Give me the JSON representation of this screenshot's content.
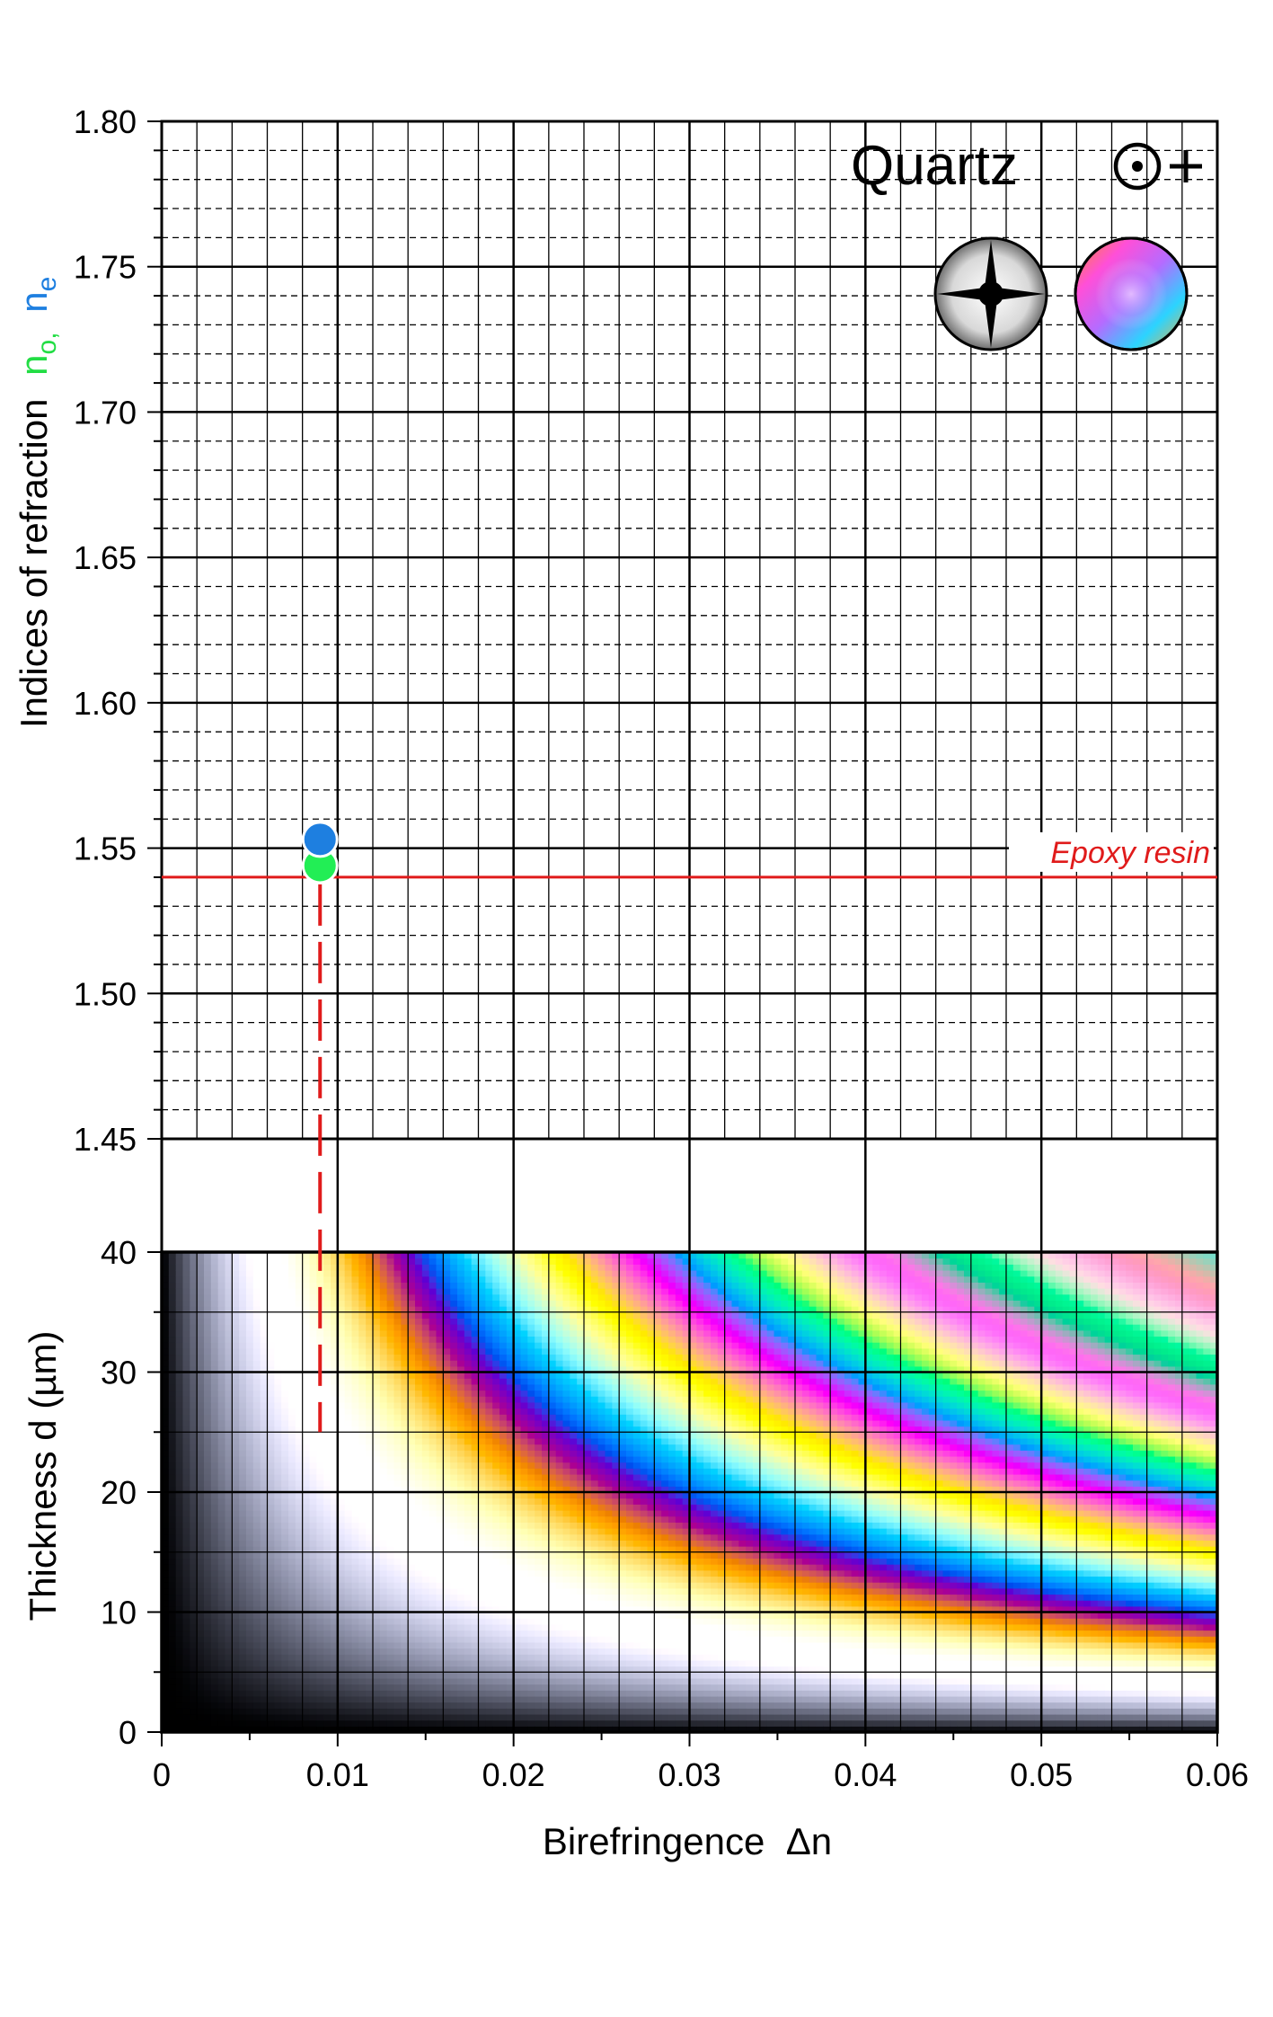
{
  "chart_data": [
    {
      "type": "scatter",
      "panel": "refractive-indices",
      "ylabel_prefix": "Indices of refraction",
      "ylabel_no": "n",
      "ylabel_no_sub": "o,",
      "ylabel_ne": "n",
      "ylabel_ne_sub": "e",
      "ylim": [
        1.45,
        1.8
      ],
      "y_ticks": [
        "1.45",
        "1.50",
        "1.55",
        "1.60",
        "1.65",
        "1.70",
        "1.75",
        "1.80"
      ],
      "grid": true,
      "mineral": "Quartz",
      "optic_sign": "⊙+",
      "points": [
        {
          "label": "no",
          "delta_n": 0.009,
          "index": 1.544,
          "color": "#22ee55"
        },
        {
          "label": "ne",
          "delta_n": 0.009,
          "index": 1.553,
          "color": "#1e7fe0"
        }
      ],
      "reference_line": {
        "label": "Epoxy resin",
        "index": 1.54,
        "color": "#e01b1b"
      }
    },
    {
      "type": "heatmap",
      "panel": "interference-colors",
      "xlabel": "Birefringence  Δn",
      "ylabel": "Thickness  d  (µm)",
      "xlim": [
        0,
        0.06
      ],
      "ylim": [
        0,
        40
      ],
      "x_ticks": [
        "0",
        "0.01",
        "0.02",
        "0.03",
        "0.04",
        "0.05",
        "0.06"
      ],
      "y_ticks": [
        "0",
        "10",
        "20",
        "30",
        "40"
      ],
      "grid": true,
      "mineral_birefringence": 0.009,
      "dashed_line": {
        "delta_n": 0.009,
        "from_index": 1.54,
        "to_thickness": 25,
        "color": "#e01b1b"
      }
    }
  ]
}
